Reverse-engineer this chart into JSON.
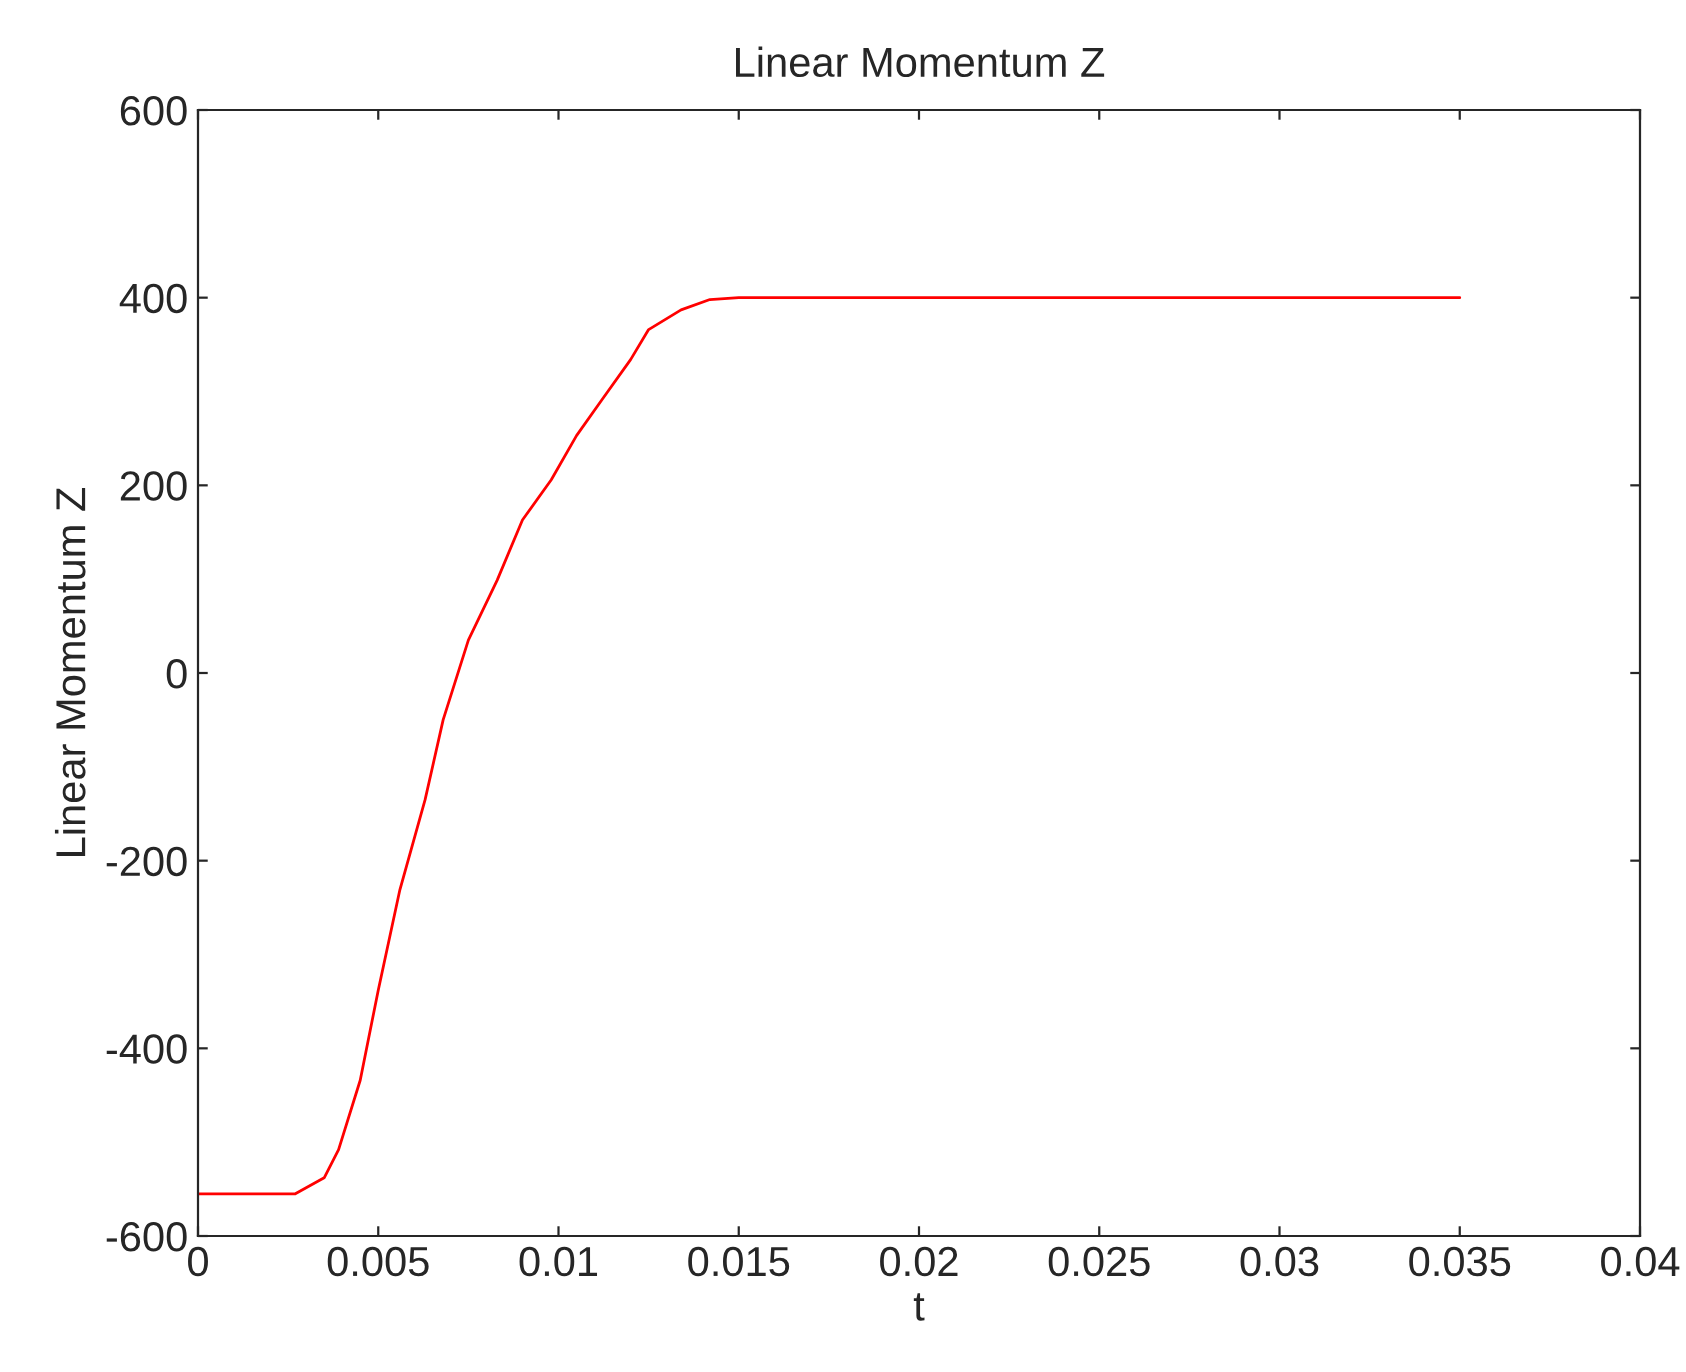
{
  "chart_data": {
    "type": "line",
    "title": "Linear Momentum Z",
    "xlabel": "t",
    "ylabel": "Linear Momentum Z",
    "x": [
      0,
      0.0027,
      0.0035,
      0.0039,
      0.0045,
      0.005,
      0.0056,
      0.0063,
      0.0068,
      0.0075,
      0.0083,
      0.009,
      0.0098,
      0.0105,
      0.0112,
      0.012,
      0.0125,
      0.0134,
      0.0142,
      0.015,
      0.035
    ],
    "series": [
      {
        "color": "#ff0000",
        "values": [
          -555,
          -555,
          -538,
          -508,
          -434,
          -338,
          -231,
          -135,
          -50,
          35,
          99,
          163,
          206,
          253,
          291,
          334,
          366,
          387,
          398,
          400,
          400
        ]
      }
    ],
    "xlim": [
      0,
      0.04
    ],
    "xticks": [
      0,
      0.005,
      0.01,
      0.015,
      0.02,
      0.025,
      0.03,
      0.035,
      0.04
    ],
    "ylim": [
      -600,
      600
    ],
    "yticks": [
      -600,
      -400,
      -200,
      0,
      200,
      400,
      600
    ],
    "grid": false,
    "legend": false,
    "marker": "none",
    "line_style": "solid"
  }
}
